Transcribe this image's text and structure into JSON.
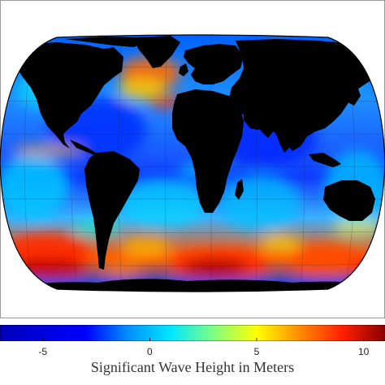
{
  "map": {
    "projection": "robinson-like",
    "land_color": "#000000",
    "ocean_base_color": "#1f5cff",
    "frame_color": "#000000",
    "background_color": "#ffffff"
  },
  "legend": {
    "colorbar": {
      "min": -7,
      "max": 11,
      "ticks": [
        {
          "label": "-5",
          "value": -5
        },
        {
          "label": "0",
          "value": 0
        },
        {
          "label": "5",
          "value": 5
        },
        {
          "label": "10",
          "value": 10
        }
      ],
      "stops": [
        {
          "value": -7,
          "color": "#0000b8"
        },
        {
          "value": -3,
          "color": "#0000ff"
        },
        {
          "value": -1,
          "color": "#0090ff"
        },
        {
          "value": 1,
          "color": "#00e8ff"
        },
        {
          "value": 3,
          "color": "#80ff80"
        },
        {
          "value": 5,
          "color": "#ffff00"
        },
        {
          "value": 7,
          "color": "#ff8c00"
        },
        {
          "value": 9,
          "color": "#ff2000"
        },
        {
          "value": 11,
          "color": "#8b0000"
        }
      ]
    },
    "title": "Significant Wave Height in Meters"
  }
}
